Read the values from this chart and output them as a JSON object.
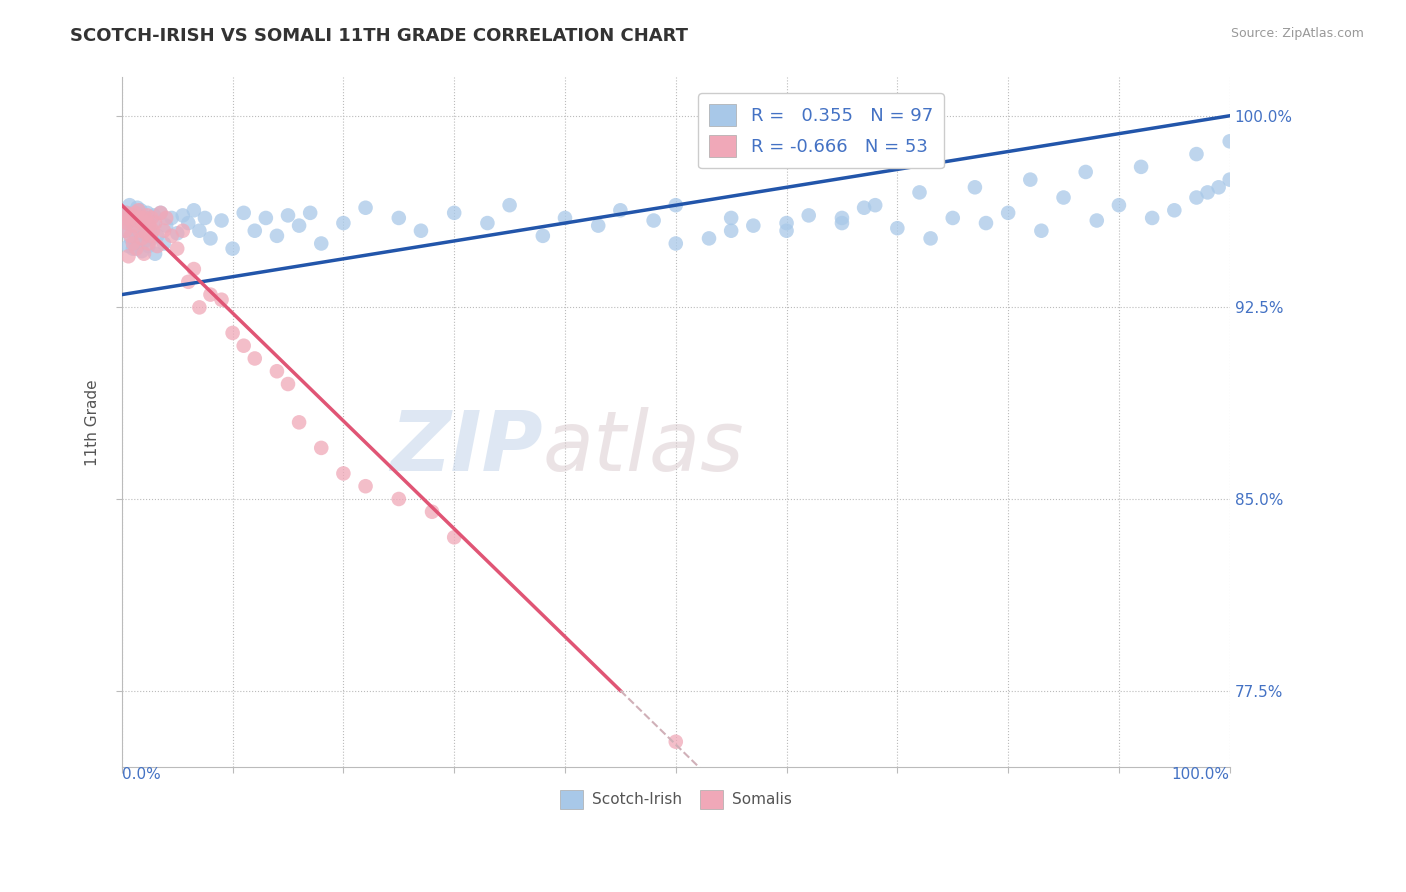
{
  "title": "SCOTCH-IRISH VS SOMALI 11TH GRADE CORRELATION CHART",
  "source": "Source: ZipAtlas.com",
  "ylabel": "11th Grade",
  "y_ticks": [
    77.5,
    85.0,
    92.5,
    100.0
  ],
  "y_tick_labels": [
    "77.5%",
    "85.0%",
    "92.5%",
    "100.0%"
  ],
  "x_range": [
    0.0,
    100.0
  ],
  "y_range": [
    74.5,
    101.5
  ],
  "legend_label1": "Scotch-Irish",
  "legend_label2": "Somalis",
  "R1": 0.355,
  "N1": 97,
  "R2": -0.666,
  "N2": 53,
  "blue_color": "#a8c8e8",
  "pink_color": "#f0a8b8",
  "blue_line_color": "#2255aa",
  "pink_line_color": "#e05575",
  "blue_line_y0": 93.0,
  "blue_line_y100": 100.0,
  "pink_line_y0": 96.5,
  "pink_line_yend": 77.5,
  "pink_line_xend": 45.0,
  "scotch_irish_x": [
    0.3,
    0.4,
    0.5,
    0.6,
    0.7,
    0.8,
    0.9,
    1.0,
    1.1,
    1.2,
    1.3,
    1.4,
    1.5,
    1.6,
    1.7,
    1.8,
    1.9,
    2.0,
    2.1,
    2.2,
    2.3,
    2.4,
    2.5,
    2.6,
    2.7,
    2.8,
    2.9,
    3.0,
    3.2,
    3.5,
    3.8,
    4.0,
    4.5,
    5.0,
    5.5,
    6.0,
    6.5,
    7.0,
    7.5,
    8.0,
    9.0,
    10.0,
    11.0,
    12.0,
    13.0,
    14.0,
    15.0,
    16.0,
    17.0,
    18.0,
    20.0,
    22.0,
    25.0,
    27.0,
    30.0,
    33.0,
    35.0,
    38.0,
    40.0,
    43.0,
    45.0,
    48.0,
    50.0,
    53.0,
    55.0,
    57.0,
    60.0,
    62.0,
    65.0,
    67.0,
    70.0,
    73.0,
    75.0,
    78.0,
    80.0,
    83.0,
    85.0,
    88.0,
    90.0,
    93.0,
    95.0,
    97.0,
    98.0,
    99.0,
    100.0,
    50.0,
    55.0,
    60.0,
    65.0,
    68.0,
    72.0,
    77.0,
    82.0,
    87.0,
    92.0,
    97.0,
    100.0
  ],
  "scotch_irish_y": [
    95.5,
    96.2,
    95.8,
    94.9,
    96.5,
    95.2,
    96.0,
    94.8,
    95.6,
    96.1,
    95.3,
    96.4,
    95.0,
    95.9,
    96.3,
    94.7,
    95.4,
    96.0,
    95.1,
    95.7,
    96.2,
    94.9,
    95.5,
    96.0,
    95.2,
    95.8,
    96.1,
    94.6,
    95.3,
    96.2,
    95.0,
    95.7,
    96.0,
    95.4,
    96.1,
    95.8,
    96.3,
    95.5,
    96.0,
    95.2,
    95.9,
    94.8,
    96.2,
    95.5,
    96.0,
    95.3,
    96.1,
    95.7,
    96.2,
    95.0,
    95.8,
    96.4,
    96.0,
    95.5,
    96.2,
    95.8,
    96.5,
    95.3,
    96.0,
    95.7,
    96.3,
    95.9,
    96.5,
    95.2,
    96.0,
    95.7,
    95.5,
    96.1,
    95.8,
    96.4,
    95.6,
    95.2,
    96.0,
    95.8,
    96.2,
    95.5,
    96.8,
    95.9,
    96.5,
    96.0,
    96.3,
    96.8,
    97.0,
    97.2,
    97.5,
    95.0,
    95.5,
    95.8,
    96.0,
    96.5,
    97.0,
    97.2,
    97.5,
    97.8,
    98.0,
    98.5,
    99.0
  ],
  "somali_x": [
    0.2,
    0.3,
    0.4,
    0.5,
    0.6,
    0.7,
    0.8,
    0.9,
    1.0,
    1.1,
    1.2,
    1.3,
    1.4,
    1.5,
    1.6,
    1.7,
    1.8,
    1.9,
    2.0,
    2.1,
    2.2,
    2.3,
    2.4,
    2.5,
    2.6,
    2.7,
    2.8,
    3.0,
    3.2,
    3.5,
    3.8,
    4.0,
    4.5,
    5.0,
    5.5,
    6.0,
    6.5,
    7.0,
    8.0,
    9.0,
    10.0,
    11.0,
    12.0,
    14.0,
    15.0,
    16.0,
    18.0,
    20.0,
    22.0,
    25.0,
    28.0,
    30.0,
    50.0
  ],
  "somali_y": [
    96.0,
    95.5,
    96.2,
    95.8,
    94.5,
    96.0,
    95.3,
    96.1,
    95.0,
    95.7,
    96.2,
    94.8,
    95.9,
    96.3,
    95.5,
    96.0,
    95.2,
    95.8,
    94.6,
    96.0,
    95.4,
    96.1,
    95.0,
    95.7,
    95.3,
    96.0,
    95.5,
    95.8,
    94.9,
    96.2,
    95.5,
    96.0,
    95.3,
    94.8,
    95.5,
    93.5,
    94.0,
    92.5,
    93.0,
    92.8,
    91.5,
    91.0,
    90.5,
    90.0,
    89.5,
    88.0,
    87.0,
    86.0,
    85.5,
    85.0,
    84.5,
    83.5,
    75.5
  ]
}
